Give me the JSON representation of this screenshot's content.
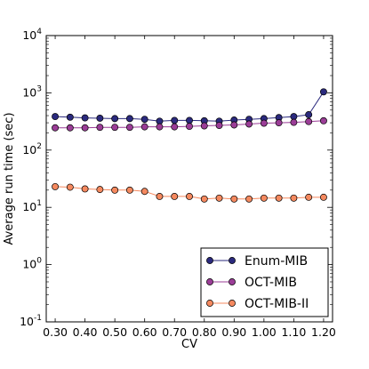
{
  "chart_data": {
    "type": "line",
    "xlabel": "CV",
    "ylabel": "Average run time (sec)",
    "yscale": "log",
    "xlim": [
      0.27,
      1.23
    ],
    "ylim": [
      0.1,
      10000
    ],
    "xticks": [
      "0.30",
      "0.40",
      "0.50",
      "0.60",
      "0.70",
      "0.80",
      "0.90",
      "1.00",
      "1.10",
      "1.20"
    ],
    "yticks": [
      {
        "value": 0.1,
        "base": "10",
        "exp": "-1"
      },
      {
        "value": 1,
        "base": "10",
        "exp": "0"
      },
      {
        "value": 10,
        "base": "10",
        "exp": "1"
      },
      {
        "value": 100,
        "base": "10",
        "exp": "2"
      },
      {
        "value": 1000,
        "base": "10",
        "exp": "3"
      },
      {
        "value": 10000,
        "base": "10",
        "exp": "4"
      }
    ],
    "x": [
      0.3,
      0.35,
      0.4,
      0.45,
      0.5,
      0.55,
      0.6,
      0.65,
      0.7,
      0.75,
      0.8,
      0.85,
      0.9,
      0.95,
      1.0,
      1.05,
      1.1,
      1.15,
      1.2
    ],
    "legend_position": "lower-right",
    "grid": false,
    "series": [
      {
        "name": "Enum-MIB",
        "color": "#2b2a7e",
        "values": [
          385,
          375,
          365,
          360,
          355,
          355,
          345,
          320,
          330,
          330,
          325,
          320,
          335,
          345,
          355,
          370,
          385,
          415,
          1040
        ]
      },
      {
        "name": "OCT-MIB",
        "color": "#9b3d97",
        "values": [
          245,
          245,
          245,
          250,
          250,
          250,
          255,
          255,
          255,
          260,
          265,
          270,
          275,
          285,
          295,
          300,
          305,
          315,
          325
        ]
      },
      {
        "name": "OCT-MIB-II",
        "color": "#f5895f",
        "values": [
          23,
          22.5,
          21,
          20.5,
          20,
          20,
          19,
          15.5,
          15.5,
          15.5,
          14,
          14.5,
          14,
          14,
          14.5,
          14.5,
          14.5,
          15,
          15
        ]
      }
    ]
  }
}
